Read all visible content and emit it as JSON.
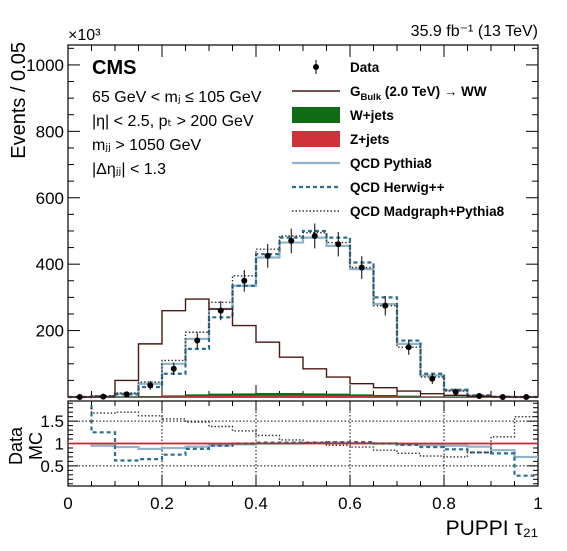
{
  "chart_data": {
    "type": "histogram",
    "title": "",
    "lumi_label": "35.9 fb⁻¹ (13 TeV)",
    "experiment": "CMS",
    "y_multiplier": "×10³",
    "xlabel": "PUPPI τ₂₁",
    "ylabel": "Events / 0.05",
    "ratio_ylabel_num": "Data",
    "ratio_ylabel_den": "MC",
    "xlim": [
      0,
      1
    ],
    "ylim": [
      0,
      1060
    ],
    "ratio_ylim": [
      0.05,
      1.95
    ],
    "x_ticks": [
      "0",
      "0.2",
      "0.4",
      "0.6",
      "0.8",
      "1"
    ],
    "y_ticks": [
      "200",
      "400",
      "600",
      "800",
      "1000"
    ],
    "ratio_ticks": [
      "0.5",
      "1",
      "1.5"
    ],
    "selection_lines": [
      "65 GeV < mⱼ ≤ 105 GeV",
      "|η| < 2.5, pₜ > 200 GeV",
      "mⱼⱼ > 1050 GeV",
      "|Δηⱼⱼ| < 1.3"
    ],
    "legend": [
      {
        "label": "Data",
        "style": "marker"
      },
      {
        "label": "G_Bulk (2.0 TeV) → WW",
        "style": "line"
      },
      {
        "label": "W+jets",
        "style": "fill"
      },
      {
        "label": "Z+jets",
        "style": "fill"
      },
      {
        "label": "QCD Pythia8",
        "style": "line"
      },
      {
        "label": "QCD Herwig++",
        "style": "dashed"
      },
      {
        "label": "QCD Madgraph+Pythia8",
        "style": "dotted"
      }
    ],
    "bin_edges": [
      0,
      0.05,
      0.1,
      0.15,
      0.2,
      0.25,
      0.3,
      0.35,
      0.4,
      0.45,
      0.5,
      0.55,
      0.6,
      0.65,
      0.7,
      0.75,
      0.8,
      0.85,
      0.9,
      0.95,
      1
    ],
    "data_x": [
      0.025,
      0.075,
      0.125,
      0.175,
      0.225,
      0.275,
      0.325,
      0.375,
      0.425,
      0.475,
      0.525,
      0.575,
      0.625,
      0.675,
      0.725,
      0.775,
      0.825,
      0.875,
      0.925,
      0.975
    ],
    "data_y": [
      0,
      1,
      8,
      35,
      85,
      170,
      260,
      350,
      425,
      470,
      485,
      460,
      390,
      275,
      150,
      55,
      15,
      3,
      0,
      0
    ],
    "series": [
      {
        "name": "G_Bulk (2.0 TeV) → WW",
        "values": [
          0,
          0,
          50,
          160,
          260,
          295,
          265,
          215,
          165,
          120,
          85,
          60,
          40,
          28,
          18,
          10,
          5,
          2,
          0,
          0
        ],
        "color": "#4a1a12"
      },
      {
        "name": "W+jets",
        "values": [
          0,
          0,
          1,
          3,
          5,
          8,
          10,
          11,
          12,
          12,
          11,
          10,
          8,
          6,
          4,
          2,
          1,
          0,
          0,
          0
        ],
        "color": "#0f6b14"
      },
      {
        "name": "Z+jets",
        "values": [
          0,
          0,
          0,
          1,
          2,
          3,
          4,
          4,
          5,
          5,
          4,
          4,
          3,
          2,
          1,
          1,
          0,
          0,
          0,
          0
        ],
        "color": "#d0323a"
      },
      {
        "name": "QCD Pythia8",
        "values": [
          0,
          2,
          10,
          40,
          100,
          175,
          265,
          335,
          420,
          465,
          480,
          455,
          385,
          280,
          160,
          65,
          20,
          4,
          1,
          0
        ],
        "color": "#8fb3c9"
      },
      {
        "name": "QCD Herwig++",
        "values": [
          0,
          2,
          8,
          30,
          70,
          145,
          240,
          335,
          430,
          480,
          500,
          480,
          405,
          300,
          170,
          70,
          22,
          5,
          1,
          0
        ],
        "color": "#2d6e8e"
      },
      {
        "name": "QCD Madgraph+Pythia8",
        "values": [
          0,
          3,
          12,
          45,
          110,
          195,
          285,
          365,
          445,
          485,
          495,
          465,
          390,
          275,
          150,
          60,
          18,
          4,
          1,
          0
        ],
        "color": "#303030"
      }
    ],
    "ratio": {
      "reference": 1,
      "reference_color": "#c0272d",
      "series": [
        {
          "name": "QCD Pythia8",
          "values": [
            1.0,
            0.95,
            0.92,
            0.88,
            0.9,
            0.93,
            0.96,
            0.98,
            1.0,
            1.0,
            1.01,
            1.02,
            1.01,
            1.0,
            0.98,
            0.96,
            0.95,
            0.93,
            0.85,
            0.7
          ]
        },
        {
          "name": "QCD Herwig++",
          "values": [
            1.85,
            1.25,
            0.62,
            0.65,
            0.75,
            0.88,
            0.95,
            1.0,
            1.02,
            1.02,
            1.02,
            1.03,
            1.03,
            1.0,
            0.97,
            0.92,
            0.87,
            0.8,
            0.78,
            0.28
          ]
        },
        {
          "name": "QCD Madgraph+Pythia8",
          "values": [
            1.8,
            1.68,
            1.7,
            1.62,
            1.55,
            1.48,
            1.38,
            1.28,
            1.18,
            1.08,
            1.02,
            0.96,
            0.92,
            0.85,
            0.78,
            0.72,
            0.7,
            0.8,
            1.15,
            1.6
          ]
        }
      ]
    }
  }
}
